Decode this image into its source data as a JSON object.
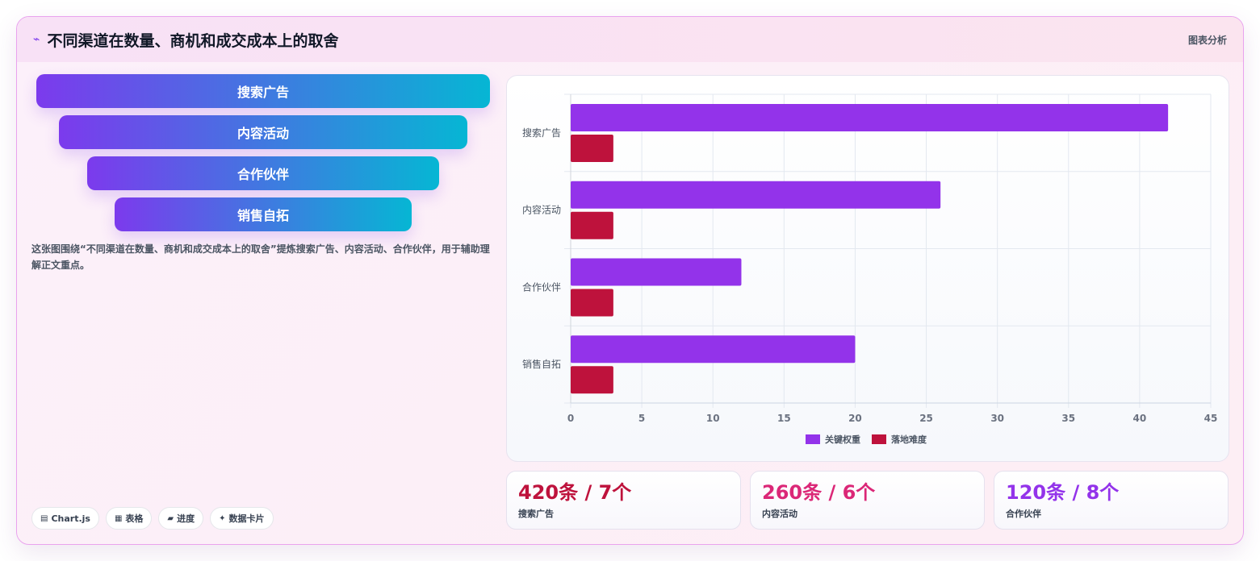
{
  "header": {
    "icon": "chart-line-icon",
    "title": "不同渠道在数量、商机和成交成本上的取舍",
    "tag": "图表分析"
  },
  "funnel": {
    "items": [
      "搜索广告",
      "内容活动",
      "合作伙伴",
      "销售自拓"
    ]
  },
  "description": "这张图围绕“不同渠道在数量、商机和成交成本上的取舍”提炼搜索广告、内容活动、合作伙伴，用于辅助理解正文重点。",
  "chips": [
    {
      "icon": "chart-icon",
      "label": "Chart.js"
    },
    {
      "icon": "table-icon",
      "label": "表格"
    },
    {
      "icon": "progress-icon",
      "label": "进度"
    },
    {
      "icon": "sparkle-icon",
      "label": "数据卡片"
    }
  ],
  "chart_data": {
    "type": "bar",
    "orientation": "horizontal",
    "categories": [
      "搜索广告",
      "内容活动",
      "合作伙伴",
      "销售自拓"
    ],
    "series": [
      {
        "name": "关键权重",
        "values": [
          42,
          26,
          12,
          20
        ],
        "color": "#9333ea"
      },
      {
        "name": "落地难度",
        "values": [
          3,
          3,
          3,
          3
        ],
        "color": "#be123c"
      }
    ],
    "xlim": [
      0,
      45
    ],
    "xticks": [
      0,
      5,
      10,
      15,
      20,
      25,
      30,
      35,
      40,
      45
    ],
    "grid": true,
    "legend": "bottom",
    "title": "",
    "xlabel": "",
    "ylabel": ""
  },
  "stats": [
    {
      "value": "420条 / 7个",
      "label": "搜索广告",
      "color": "#be123c"
    },
    {
      "value": "260条 / 6个",
      "label": "内容活动",
      "color": "#db2777"
    },
    {
      "value": "120条 / 8个",
      "label": "合作伙伴",
      "color": "#9333ea"
    }
  ]
}
